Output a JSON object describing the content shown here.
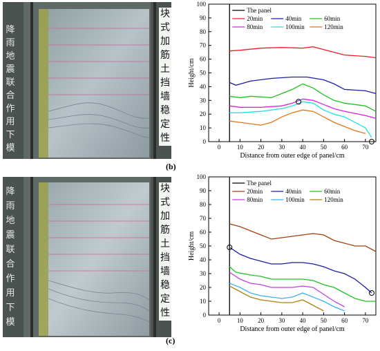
{
  "figure_labels": {
    "b": "(b)",
    "c": "(c)"
  },
  "photos": [
    {
      "side_text_right": [
        "块",
        "式",
        "加",
        "筋",
        "土",
        "挡",
        "墙",
        "稳",
        "定",
        "性"
      ],
      "side_text_left": [
        "降",
        "雨",
        "地",
        "震",
        "联",
        "合",
        "作",
        "用",
        "下",
        "模"
      ]
    },
    {
      "side_text_right": [
        "块",
        "式",
        "加",
        "筋",
        "土",
        "挡",
        "墙",
        "稳",
        "定",
        "性"
      ],
      "side_text_left": [
        "降",
        "雨",
        "地",
        "震",
        "联",
        "合",
        "作",
        "用",
        "下",
        "模"
      ]
    }
  ],
  "chart_data": [
    {
      "type": "line",
      "xlabel": "Distance from outer edge of panel/cm",
      "ylabel": "Height/cm",
      "xlim": [
        -5,
        75
      ],
      "ylim": [
        0,
        100
      ],
      "xticks": [
        0,
        10,
        20,
        30,
        40,
        50,
        60,
        70
      ],
      "yticks": [
        0,
        10,
        20,
        30,
        40,
        50,
        60,
        70,
        80,
        90,
        100
      ],
      "legend_position": "top",
      "panel_line": {
        "name": "The panel",
        "x": 5,
        "color": "#000000"
      },
      "series": [
        {
          "name": "20min",
          "color": "#e8202a",
          "x": [
            5,
            10,
            20,
            30,
            40,
            45,
            50,
            60,
            70,
            75
          ],
          "y": [
            66,
            66.5,
            68,
            68.5,
            68,
            69,
            67,
            63,
            62,
            61
          ]
        },
        {
          "name": "40min",
          "color": "#1c1ca8",
          "x": [
            5,
            8,
            15,
            25,
            35,
            42,
            50,
            55,
            60,
            70,
            75
          ],
          "y": [
            43,
            41,
            44,
            46,
            47,
            47,
            45,
            42,
            38,
            37,
            35
          ]
        },
        {
          "name": "60min",
          "color": "#22c022",
          "x": [
            5,
            10,
            15,
            25,
            35,
            40,
            45,
            50,
            55,
            60,
            70,
            75
          ],
          "y": [
            33,
            32,
            33,
            32,
            38,
            42,
            39,
            34,
            30,
            28,
            26,
            22
          ]
        },
        {
          "name": "80min",
          "color": "#e020e0",
          "x": [
            5,
            10,
            20,
            30,
            35,
            40,
            45,
            50,
            55,
            60,
            70,
            75
          ],
          "y": [
            26,
            25,
            25,
            26,
            28,
            31,
            30,
            27,
            24,
            22,
            19,
            17
          ]
        },
        {
          "name": "100min",
          "color": "#20e0e0",
          "x": [
            5,
            10,
            20,
            30,
            35,
            40,
            45,
            50,
            55,
            60,
            65,
            70,
            73
          ],
          "y": [
            21,
            21,
            22,
            24,
            26,
            29,
            28,
            23,
            20,
            18,
            14,
            10,
            3
          ]
        },
        {
          "name": "120min",
          "color": "#e07818",
          "x": [
            5,
            10,
            15,
            20,
            25,
            30,
            35,
            40,
            45,
            50,
            55,
            60,
            65,
            70
          ],
          "y": [
            15,
            14,
            13,
            12,
            14,
            18,
            21,
            23,
            22,
            18,
            14,
            11,
            8,
            6
          ]
        }
      ],
      "markers": [
        {
          "x": 38,
          "y": 29
        },
        {
          "x": 73,
          "y": 0
        }
      ]
    },
    {
      "type": "line",
      "xlabel": "Distance from outer edge of panel/cm",
      "ylabel": "Height/cm",
      "xlim": [
        -5,
        75
      ],
      "ylim": [
        0,
        100
      ],
      "xticks": [
        0,
        10,
        20,
        30,
        40,
        50,
        60,
        70
      ],
      "yticks": [
        0,
        10,
        20,
        30,
        40,
        50,
        60,
        70,
        80,
        90,
        100
      ],
      "legend_position": "top",
      "panel_line": {
        "name": "The panel",
        "x": 5,
        "color": "#000000"
      },
      "series": [
        {
          "name": "20min",
          "color": "#a04010",
          "x": [
            5,
            10,
            15,
            20,
            25,
            30,
            35,
            40,
            45,
            50,
            55,
            60,
            65,
            70,
            75
          ],
          "y": [
            66,
            64,
            61,
            58,
            55,
            56,
            57,
            58,
            59,
            58,
            54,
            52,
            50,
            50,
            46
          ]
        },
        {
          "name": "40min",
          "color": "#1c1ca8",
          "x": [
            5,
            10,
            15,
            20,
            25,
            30,
            35,
            40,
            45,
            50,
            55,
            60,
            65,
            70,
            73
          ],
          "y": [
            49,
            44,
            41,
            39,
            37,
            37,
            38,
            38,
            37,
            35,
            32,
            30,
            26,
            20,
            16
          ]
        },
        {
          "name": "60min",
          "color": "#22c022",
          "x": [
            5,
            8,
            15,
            20,
            25,
            30,
            40,
            45,
            50,
            55,
            60,
            65,
            70,
            75
          ],
          "y": [
            35,
            31,
            29,
            28,
            26,
            26,
            26,
            25,
            22,
            20,
            16,
            12,
            10,
            10
          ]
        },
        {
          "name": "80min",
          "color": "#c040e0",
          "x": [
            5,
            10,
            15,
            20,
            25,
            30,
            35,
            40,
            45,
            50,
            55,
            60
          ],
          "y": [
            31,
            26,
            23,
            22,
            20,
            20,
            20,
            21,
            20,
            15,
            10,
            6
          ]
        },
        {
          "name": "100min",
          "color": "#40b0f0",
          "x": [
            5,
            10,
            15,
            20,
            25,
            30,
            35,
            40,
            45,
            50,
            55,
            60
          ],
          "y": [
            23,
            20,
            16,
            14,
            13,
            12,
            13,
            16,
            13,
            10,
            6,
            3
          ]
        },
        {
          "name": "120min",
          "color": "#b08010",
          "x": [
            5,
            10,
            15,
            20,
            25,
            30,
            35,
            40,
            45,
            50
          ],
          "y": [
            21,
            17,
            13,
            11,
            10,
            9,
            9,
            11,
            7,
            3
          ]
        }
      ],
      "markers": [
        {
          "x": 5,
          "y": 49
        },
        {
          "x": 73,
          "y": 16
        }
      ]
    }
  ]
}
